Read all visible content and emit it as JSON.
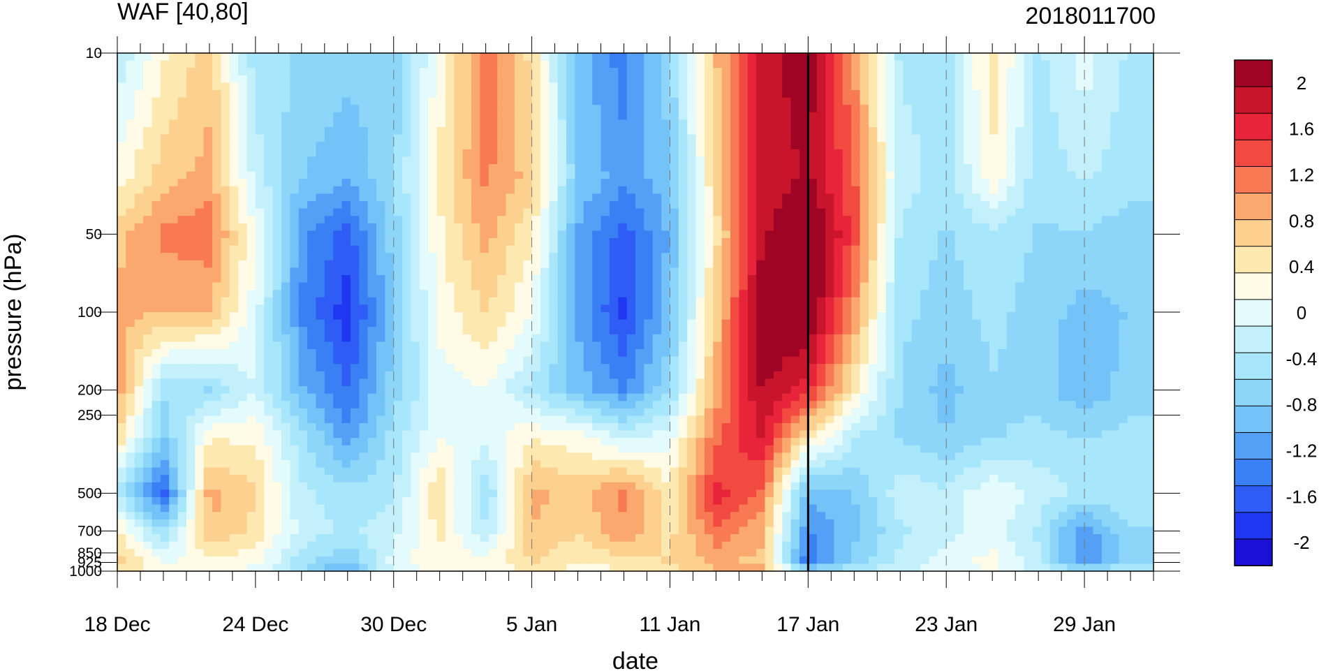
{
  "chart_data": {
    "type": "heatmap",
    "title": "WAF [40,80]",
    "subtitle": "2018011700",
    "xlabel": "date",
    "ylabel": "pressure (hPa)",
    "x_axis": {
      "ticks": [
        "18 Dec",
        "24 Dec",
        "30 Dec",
        "5 Jan",
        "11 Jan",
        "17 Jan",
        "23 Jan",
        "29 Jan"
      ],
      "tick_day_index": [
        0,
        6,
        12,
        18,
        24,
        30,
        36,
        42
      ],
      "range_days": [
        0,
        45
      ]
    },
    "y_axis": {
      "scale": "log",
      "reversed": true,
      "ticks": [
        10,
        50,
        100,
        200,
        250,
        500,
        700,
        850,
        925,
        1000
      ],
      "tick_labels": [
        "10",
        "50",
        "100",
        "200",
        "250",
        "500",
        "700",
        "850",
        "925",
        "1000"
      ],
      "range": [
        10,
        1000
      ]
    },
    "colorbar": {
      "placement": "right",
      "labels": [
        "2",
        "1.6",
        "1.2",
        "0.8",
        "0.4",
        "0",
        "-0.4",
        "-0.8",
        "-1.2",
        "-1.6",
        "-2"
      ],
      "label_values": [
        2,
        1.6,
        1.2,
        0.8,
        0.4,
        0,
        -0.4,
        -0.8,
        -1.2,
        -1.6,
        -2
      ],
      "min": -2.2,
      "max": 2.2,
      "colors": [
        "#1a10d6",
        "#1f37f0",
        "#2e5cf5",
        "#3a80f5",
        "#55a0f7",
        "#73c2f8",
        "#8dd6f9",
        "#a8e6fb",
        "#c4f0fb",
        "#e3fbfc",
        "#fffbe6",
        "#fde8b0",
        "#fcd08e",
        "#faa86e",
        "#f77a55",
        "#f24a40",
        "#e8243a",
        "#c9152b",
        "#a00425"
      ]
    },
    "marker_line_day": 30,
    "vertical_dashed_lines_days": [
      12,
      18,
      24,
      36,
      42
    ],
    "days": [
      0,
      2,
      4,
      6,
      8,
      10,
      12,
      14,
      16,
      18,
      20,
      22,
      24,
      26,
      28,
      30,
      32,
      34,
      36,
      38,
      40,
      42,
      44
    ],
    "levels": [
      10,
      30,
      50,
      100,
      200,
      300,
      500,
      700,
      925,
      1000
    ],
    "values": [
      [
        -0.3,
        0.3,
        0.7,
        -0.5,
        -0.6,
        -0.7,
        -0.8,
        0.2,
        1.2,
        0.5,
        -0.9,
        -1.4,
        -0.6,
        0.8,
        1.9,
        2.1,
        1.0,
        -0.4,
        -0.5,
        0.5,
        -0.4,
        0.0,
        -0.4
      ],
      [
        0.2,
        0.7,
        0.9,
        -0.2,
        -0.8,
        -1.0,
        -0.6,
        0.4,
        1.1,
        0.7,
        -0.8,
        -1.2,
        -0.9,
        0.6,
        1.8,
        2.0,
        1.3,
        -0.2,
        -0.5,
        0.3,
        -0.5,
        -0.3,
        -0.5
      ],
      [
        0.7,
        1.1,
        1.2,
        0.1,
        -1.2,
        -1.6,
        -0.7,
        0.3,
        0.9,
        0.4,
        -1.1,
        -1.6,
        -1.0,
        0.5,
        1.9,
        2.4,
        1.4,
        -0.4,
        -0.6,
        -0.4,
        -0.6,
        -0.6,
        -0.7
      ],
      [
        0.9,
        0.8,
        0.8,
        0.0,
        -1.3,
        -1.9,
        -0.8,
        0.2,
        0.6,
        0.1,
        -1.1,
        -1.8,
        -0.9,
        0.7,
        2.2,
        2.3,
        1.0,
        -0.5,
        -0.7,
        -0.5,
        -0.7,
        -0.9,
        -0.8
      ],
      [
        1.0,
        -0.5,
        -0.6,
        -0.1,
        -1.0,
        -1.5,
        -0.7,
        0.0,
        0.1,
        -0.4,
        -0.9,
        -1.3,
        -0.6,
        0.9,
        2.0,
        1.6,
        0.4,
        -0.6,
        -0.9,
        -0.6,
        -0.7,
        -1.0,
        -0.7
      ],
      [
        0.6,
        -0.8,
        0.3,
        0.3,
        -0.5,
        -1.2,
        -0.5,
        0.1,
        0.0,
        0.3,
        0.2,
        -0.2,
        0.0,
        1.2,
        1.8,
        0.5,
        -0.3,
        -0.6,
        -0.8,
        -0.6,
        -0.5,
        -0.6,
        -0.5
      ],
      [
        -0.4,
        -1.6,
        0.9,
        0.6,
        -0.3,
        -0.5,
        -0.4,
        0.6,
        -0.6,
        0.9,
        0.7,
        1.1,
        0.4,
        1.6,
        1.2,
        -1.0,
        -0.8,
        -0.2,
        -0.3,
        0.1,
        -0.2,
        -0.4,
        -0.4
      ],
      [
        0.4,
        -0.6,
        0.8,
        0.5,
        -0.2,
        -0.4,
        -0.2,
        0.4,
        -0.3,
        0.8,
        0.6,
        1.0,
        0.5,
        1.2,
        0.9,
        -1.3,
        -0.9,
        -0.4,
        -0.2,
        0.0,
        -0.4,
        -1.2,
        -0.6
      ],
      [
        0.7,
        0.1,
        0.3,
        0.2,
        -0.5,
        -0.8,
        0.0,
        0.3,
        0.2,
        0.6,
        0.4,
        0.5,
        0.6,
        0.9,
        0.7,
        -1.5,
        -0.7,
        -0.3,
        0.0,
        0.2,
        -0.3,
        -1.3,
        -0.6
      ],
      [
        0.5,
        0.3,
        0.2,
        0.0,
        -0.6,
        -1.2,
        -0.1,
        0.2,
        0.1,
        0.4,
        0.2,
        0.3,
        0.5,
        0.8,
        0.9,
        -0.5,
        -0.3,
        -0.2,
        0.0,
        0.1,
        -0.2,
        -0.5,
        -0.3
      ]
    ]
  }
}
